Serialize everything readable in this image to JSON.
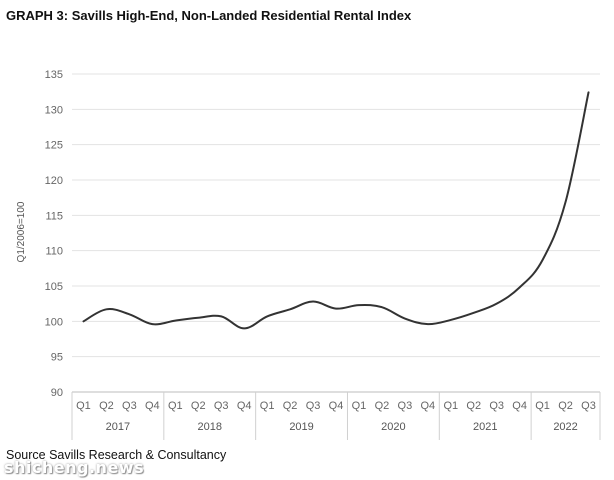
{
  "chart_data": {
    "type": "line",
    "title": "GRAPH 3: Savills High-End, Non-Landed Residential Rental Index",
    "ylabel": "Q1/2006=100",
    "xlabel": "",
    "ylim": [
      90,
      135
    ],
    "yticks": [
      90,
      95,
      100,
      105,
      110,
      115,
      120,
      125,
      130,
      135
    ],
    "grid": true,
    "legend": "none",
    "line_color": "#333333",
    "years": [
      {
        "label": "2017",
        "quarters": 4
      },
      {
        "label": "2018",
        "quarters": 4
      },
      {
        "label": "2019",
        "quarters": 4
      },
      {
        "label": "2020",
        "quarters": 4
      },
      {
        "label": "2021",
        "quarters": 4
      },
      {
        "label": "2022",
        "quarters": 3
      }
    ],
    "categories": [
      "Q1",
      "Q2",
      "Q3",
      "Q4",
      "Q1",
      "Q2",
      "Q3",
      "Q4",
      "Q1",
      "Q2",
      "Q3",
      "Q4",
      "Q1",
      "Q2",
      "Q3",
      "Q4",
      "Q1",
      "Q2",
      "Q3",
      "Q4",
      "Q1",
      "Q2",
      "Q3"
    ],
    "series": [
      {
        "values": [
          100.0,
          101.7,
          101.0,
          99.6,
          100.1,
          100.5,
          100.7,
          99.0,
          100.7,
          101.7,
          102.8,
          101.8,
          102.3,
          102.0,
          100.4,
          99.6,
          100.2,
          101.2,
          102.5,
          104.8,
          108.7,
          116.9,
          132.4
        ]
      }
    ]
  },
  "source": "Source Savills Research & Consultancy",
  "watermark": "shicheng.news"
}
